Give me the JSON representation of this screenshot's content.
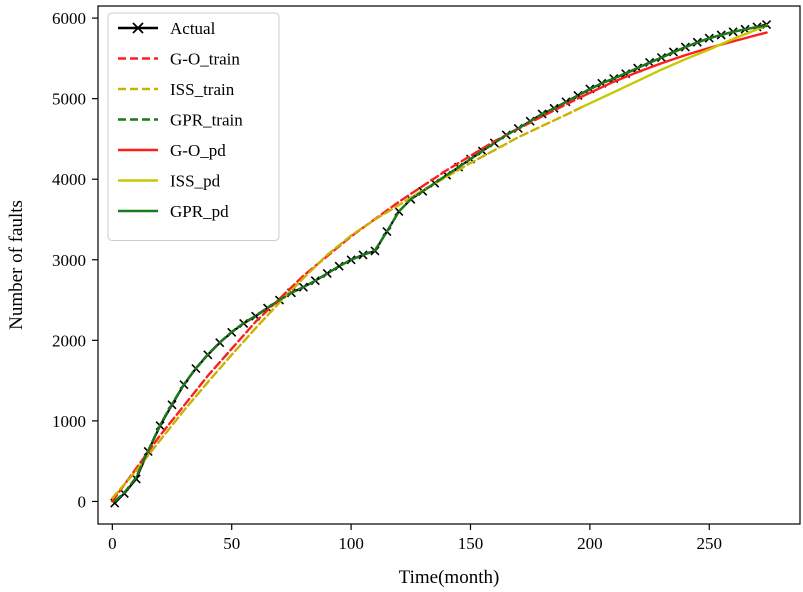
{
  "chart_data": {
    "type": "line",
    "title": "",
    "xlabel": "Time(month)",
    "ylabel": "Number of faults",
    "xlim": [
      -6,
      288
    ],
    "ylim": [
      -280,
      6150
    ],
    "xticks": [
      0,
      50,
      100,
      150,
      200,
      250
    ],
    "xtick_labels": [
      "0",
      "50",
      "100",
      "150",
      "200",
      "250"
    ],
    "yticks": [
      0,
      1000,
      2000,
      3000,
      4000,
      5000,
      6000
    ],
    "ytick_labels": [
      "0",
      "1000",
      "2000",
      "3000",
      "4000",
      "5000",
      "6000"
    ],
    "grid": false,
    "legend_position": "top-left",
    "series": [
      {
        "name": "Actual",
        "color": "#000000",
        "style": "solid",
        "marker": "x",
        "x": [
          1,
          5,
          10,
          15,
          20,
          25,
          30,
          35,
          40,
          45,
          50,
          55,
          60,
          65,
          70,
          75,
          80,
          85,
          90,
          95,
          100,
          105,
          110,
          115,
          120,
          125,
          130,
          135,
          140,
          145,
          150,
          155,
          160,
          165,
          170,
          175,
          180,
          185,
          190,
          195,
          200,
          205,
          210,
          215,
          220,
          225,
          230,
          235,
          240,
          245,
          250,
          255,
          260,
          265,
          270,
          274
        ],
        "y": [
          -20,
          100,
          280,
          620,
          940,
          1200,
          1450,
          1650,
          1820,
          1970,
          2100,
          2210,
          2300,
          2400,
          2500,
          2590,
          2660,
          2740,
          2830,
          2920,
          3000,
          3060,
          3110,
          3350,
          3600,
          3750,
          3850,
          3950,
          4050,
          4150,
          4250,
          4350,
          4450,
          4550,
          4630,
          4720,
          4810,
          4880,
          4960,
          5040,
          5120,
          5190,
          5250,
          5310,
          5380,
          5450,
          5510,
          5580,
          5640,
          5700,
          5750,
          5790,
          5830,
          5860,
          5890,
          5920
        ]
      },
      {
        "name": "G-O_train",
        "color": "#ff1e1e",
        "style": "dashed",
        "x": [
          0,
          20,
          40,
          60,
          80,
          100,
          120,
          140,
          160,
          180,
          197
        ],
        "y": [
          0,
          820,
          1560,
          2230,
          2800,
          3290,
          3720,
          4110,
          4470,
          4780,
          5030
        ]
      },
      {
        "name": "ISS_train",
        "color": "#c8b400",
        "style": "dashed",
        "x": [
          0,
          10,
          20,
          30,
          40,
          50,
          60,
          70,
          80,
          90,
          100,
          110,
          120,
          130,
          140,
          150,
          160,
          170,
          180,
          190,
          197
        ],
        "y": [
          40,
          380,
          760,
          1130,
          1480,
          1820,
          2150,
          2470,
          2770,
          3060,
          3300,
          3500,
          3680,
          3860,
          4030,
          4200,
          4360,
          4520,
          4660,
          4800,
          4900
        ]
      },
      {
        "name": "GPR_train",
        "color": "#1a7a1a",
        "style": "dashed",
        "x": [
          1,
          5,
          10,
          15,
          20,
          25,
          30,
          35,
          40,
          45,
          50,
          55,
          60,
          65,
          70,
          75,
          80,
          85,
          90,
          95,
          100,
          105,
          110,
          115,
          120,
          125,
          130,
          135,
          140,
          145,
          150,
          155,
          160,
          165,
          170,
          175,
          180,
          185,
          190,
          197
        ],
        "y": [
          0,
          110,
          300,
          630,
          950,
          1210,
          1455,
          1655,
          1825,
          1975,
          2105,
          2215,
          2305,
          2405,
          2500,
          2590,
          2660,
          2740,
          2830,
          2920,
          3000,
          3060,
          3120,
          3350,
          3600,
          3750,
          3850,
          3950,
          4050,
          4150,
          4250,
          4350,
          4450,
          4550,
          4630,
          4720,
          4810,
          4880,
          4960,
          5070
        ]
      },
      {
        "name": "G-O_pd",
        "color": "#ff1e1e",
        "style": "solid",
        "x": [
          197,
          210,
          220,
          230,
          240,
          250,
          260,
          270,
          274
        ],
        "y": [
          5030,
          5210,
          5330,
          5440,
          5540,
          5630,
          5710,
          5790,
          5820
        ]
      },
      {
        "name": "ISS_pd",
        "color": "#c8c800",
        "style": "solid",
        "x": [
          197,
          210,
          220,
          230,
          240,
          250,
          260,
          270,
          274
        ],
        "y": [
          4900,
          5080,
          5220,
          5360,
          5490,
          5610,
          5740,
          5860,
          5910
        ]
      },
      {
        "name": "GPR_pd",
        "color": "#1a7a1a",
        "style": "solid",
        "x": [
          197,
          205,
          210,
          220,
          230,
          240,
          250,
          260,
          270,
          274
        ],
        "y": [
          5070,
          5190,
          5250,
          5380,
          5510,
          5640,
          5750,
          5830,
          5890,
          5900
        ]
      }
    ]
  }
}
